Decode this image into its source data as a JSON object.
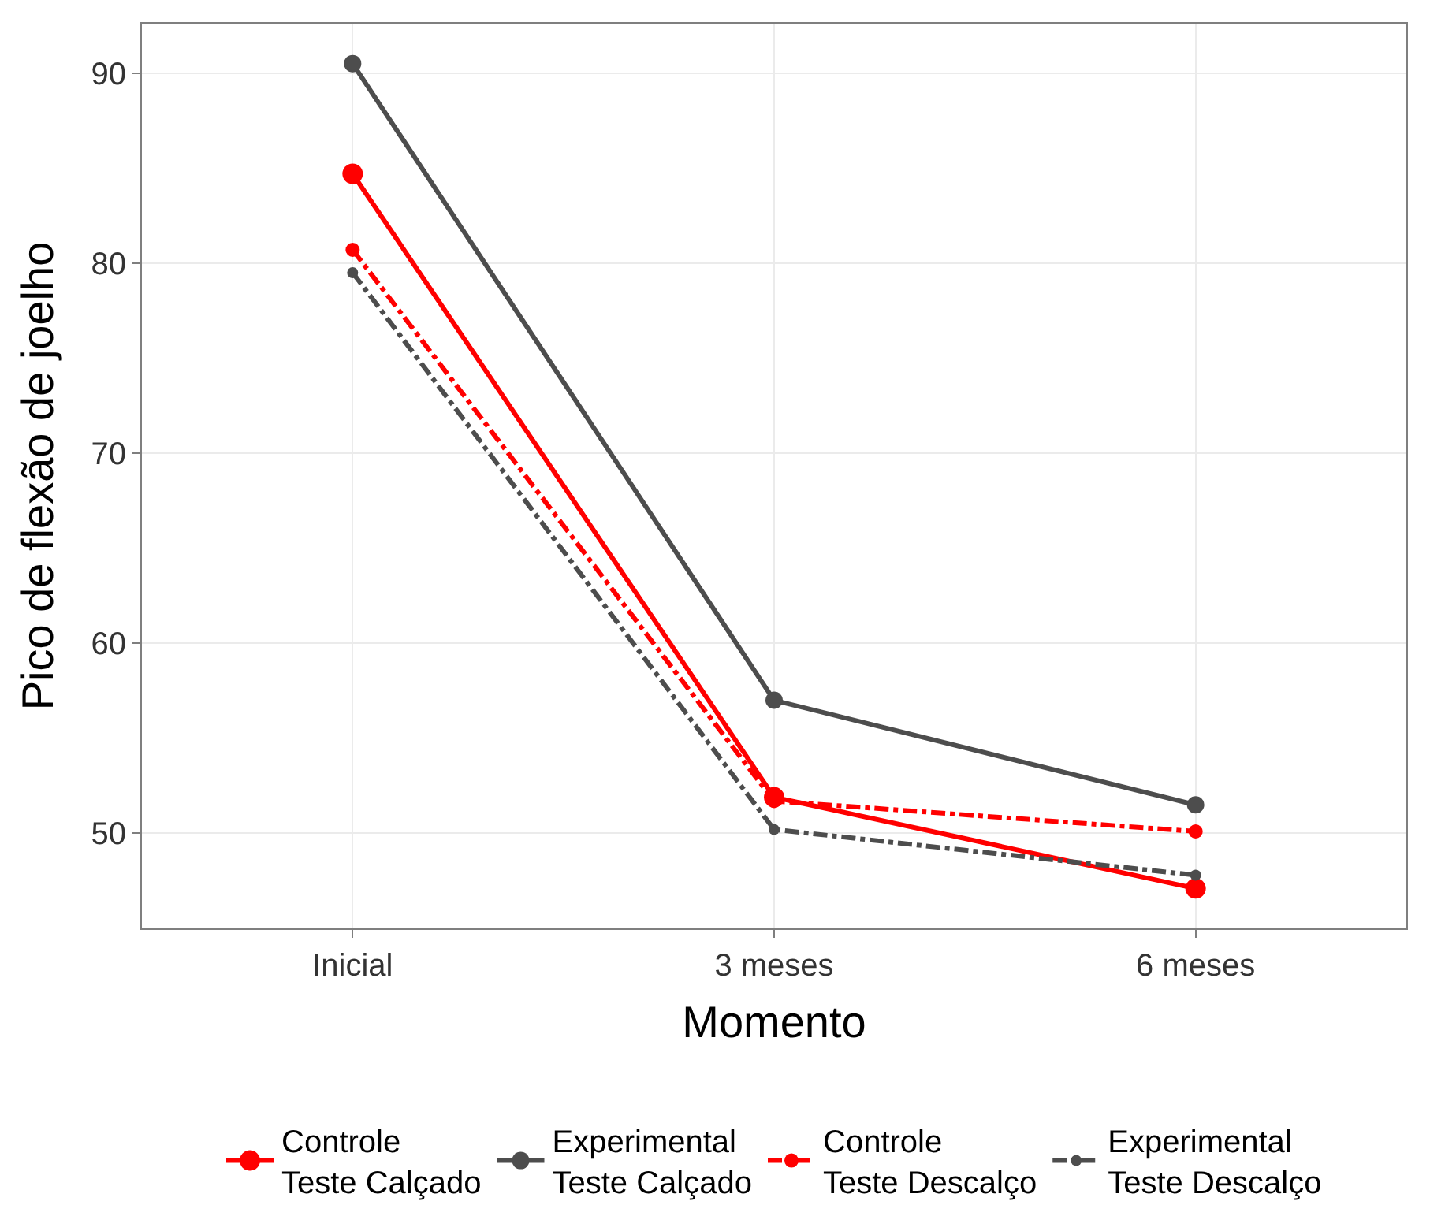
{
  "chart_data": {
    "type": "line",
    "xlabel": "Momento",
    "ylabel": "Pico de flexão de joelho",
    "categories": [
      "Inicial",
      "3 meses",
      "6 meses"
    ],
    "series": [
      {
        "name": "Controle\nTeste Calçado",
        "color": "#ff0000",
        "line_style": "solid",
        "values": [
          84.7,
          51.9,
          47.1
        ]
      },
      {
        "name": "Experimental\nTeste Calçado",
        "color": "#4d4d4d",
        "line_style": "solid",
        "values": [
          90.5,
          57.0,
          51.5
        ]
      },
      {
        "name": "Controle\nTeste Descalço",
        "color": "#ff0000",
        "line_style": "dashdot",
        "values": [
          80.7,
          51.7,
          50.1
        ]
      },
      {
        "name": "Experimental\nTeste Descalço",
        "color": "#4d4d4d",
        "line_style": "dashdot",
        "values": [
          79.5,
          50.2,
          47.8
        ]
      }
    ],
    "ylim": [
      45,
      92.6
    ],
    "yticks": [
      50,
      60,
      70,
      80,
      90
    ],
    "grid": true,
    "legend": "bottom",
    "marker": "circle"
  }
}
